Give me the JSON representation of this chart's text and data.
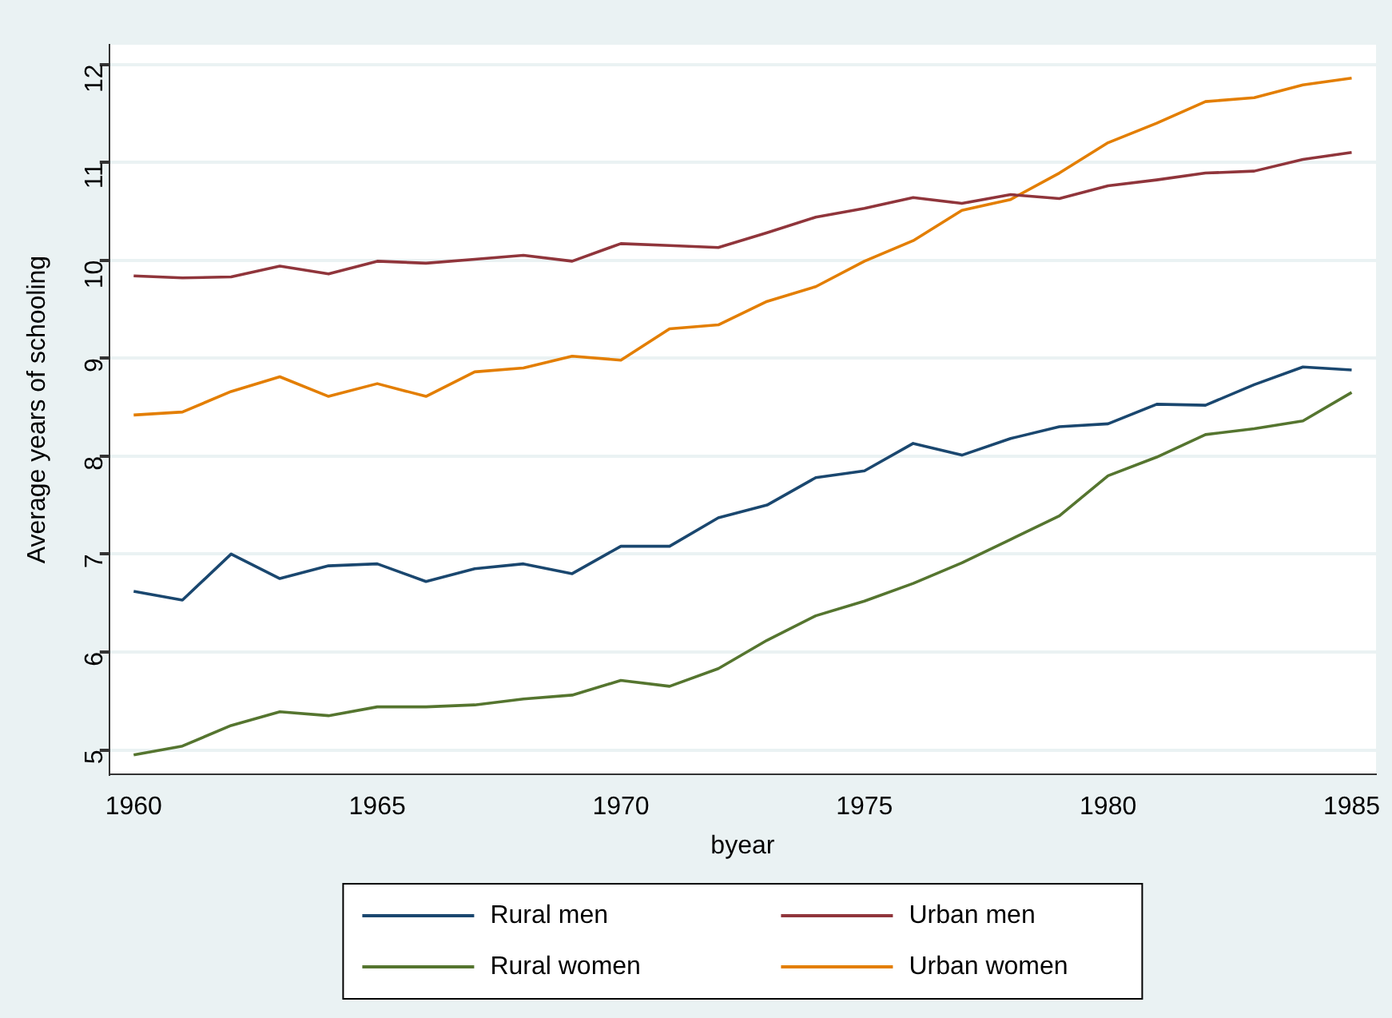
{
  "chart_data": {
    "type": "line",
    "xlabel": "byear",
    "ylabel": "Average years of schooling",
    "x": [
      1960,
      1961,
      1962,
      1963,
      1964,
      1965,
      1966,
      1967,
      1968,
      1969,
      1970,
      1971,
      1972,
      1973,
      1974,
      1975,
      1976,
      1977,
      1978,
      1979,
      1980,
      1981,
      1982,
      1983,
      1984,
      1985
    ],
    "xlim": [
      1959.5,
      1985.5
    ],
    "xticks": [
      1960,
      1965,
      1970,
      1975,
      1980,
      1985
    ],
    "ylim": [
      4.75,
      12.2
    ],
    "yticks": [
      5,
      6,
      7,
      8,
      9,
      10,
      11,
      12
    ],
    "grid": "y",
    "legend": "bottom",
    "marker": "none",
    "line_style": "solid",
    "series": [
      {
        "name": "Rural men",
        "color": "#1a476f",
        "values": [
          6.62,
          6.53,
          7.0,
          6.75,
          6.88,
          6.9,
          6.72,
          6.85,
          6.9,
          6.8,
          7.08,
          7.08,
          7.37,
          7.5,
          7.78,
          7.85,
          8.13,
          8.01,
          8.18,
          8.3,
          8.33,
          8.53,
          8.52,
          8.73,
          8.91,
          8.88
        ]
      },
      {
        "name": "Urban men",
        "color": "#90353b",
        "values": [
          9.84,
          9.82,
          9.83,
          9.94,
          9.86,
          9.99,
          9.97,
          10.01,
          10.05,
          9.99,
          10.17,
          10.15,
          10.13,
          10.28,
          10.44,
          10.53,
          10.64,
          10.58,
          10.67,
          10.63,
          10.76,
          10.82,
          10.89,
          10.91,
          11.03,
          11.1
        ]
      },
      {
        "name": "Rural women",
        "color": "#55752f",
        "values": [
          4.95,
          5.04,
          5.25,
          5.39,
          5.35,
          5.44,
          5.44,
          5.46,
          5.52,
          5.56,
          5.71,
          5.65,
          5.83,
          6.12,
          6.37,
          6.52,
          6.7,
          6.91,
          7.15,
          7.39,
          7.8,
          7.99,
          8.22,
          8.28,
          8.36,
          8.65
        ]
      },
      {
        "name": "Urban women",
        "color": "#e37e00",
        "values": [
          8.42,
          8.45,
          8.66,
          8.81,
          8.61,
          8.74,
          8.61,
          8.86,
          8.9,
          9.02,
          8.98,
          9.3,
          9.34,
          9.58,
          9.73,
          9.99,
          10.2,
          10.51,
          10.62,
          10.89,
          11.2,
          11.4,
          11.62,
          11.66,
          11.79,
          11.86
        ]
      }
    ]
  }
}
